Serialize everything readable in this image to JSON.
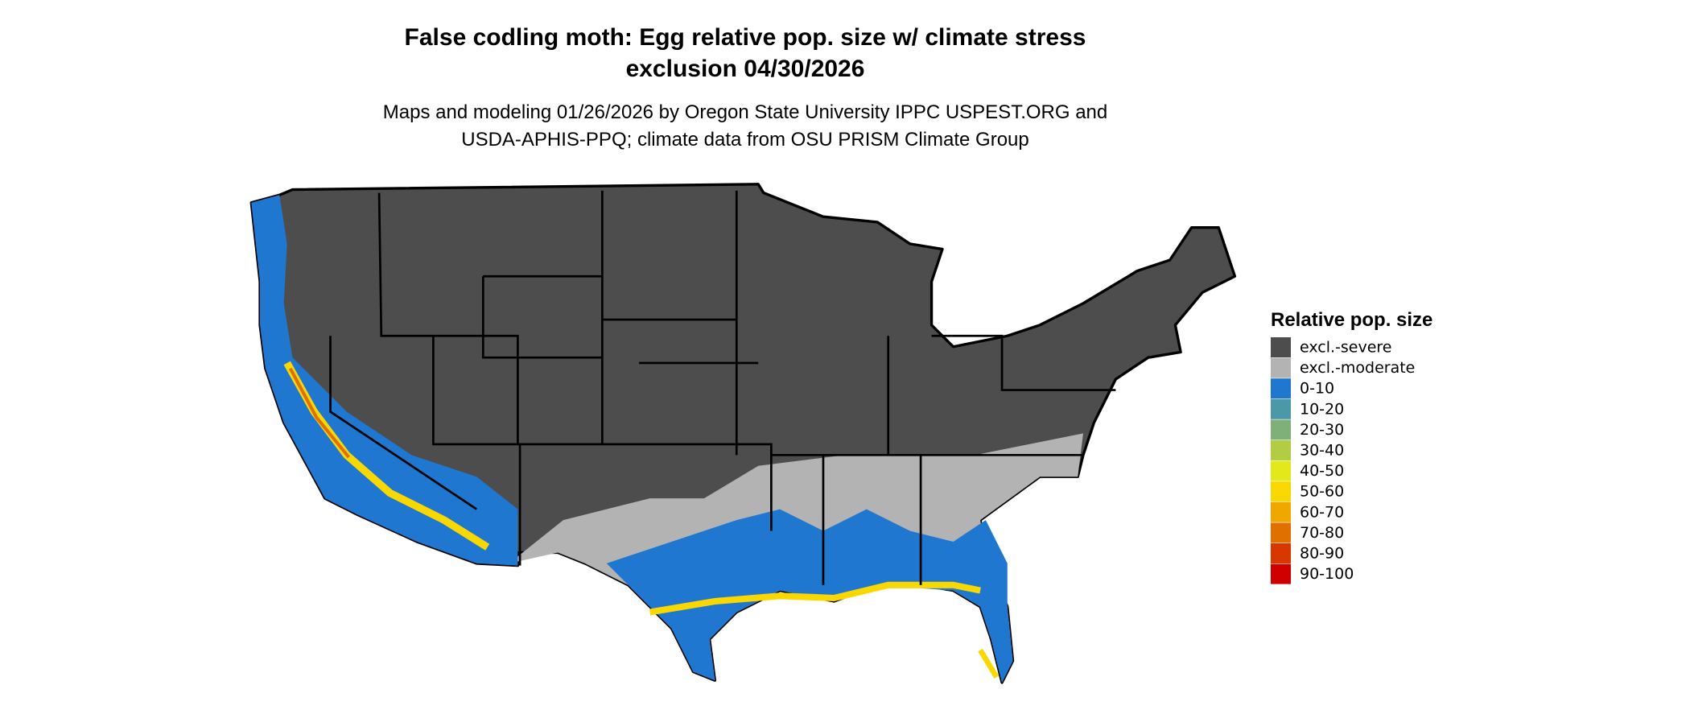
{
  "title": [
    "False codling moth: Egg relative pop. size w/ climate stress",
    "exclusion 04/30/2026"
  ],
  "subtitle": [
    "Maps and modeling 01/26/2026 by Oregon State University IPPC USPEST.ORG and",
    "USDA-APHIS-PPQ; climate data from OSU PRISM Climate Group"
  ],
  "legend": {
    "title": "Relative pop. size",
    "items": [
      {
        "label": "excl.-severe",
        "color": "#4d4d4d"
      },
      {
        "label": "excl.-moderate",
        "color": "#b3b3b3"
      },
      {
        "label": "0-10",
        "color": "#1f77d0"
      },
      {
        "label": "10-20",
        "color": "#4a98a8"
      },
      {
        "label": "20-30",
        "color": "#7fb07a"
      },
      {
        "label": "30-40",
        "color": "#b2cc44"
      },
      {
        "label": "40-50",
        "color": "#e2e81a"
      },
      {
        "label": "50-60",
        "color": "#f8d800"
      },
      {
        "label": "60-70",
        "color": "#f0a800"
      },
      {
        "label": "70-80",
        "color": "#e07000"
      },
      {
        "label": "80-90",
        "color": "#d83800"
      },
      {
        "label": "90-100",
        "color": "#d00000"
      }
    ]
  }
}
